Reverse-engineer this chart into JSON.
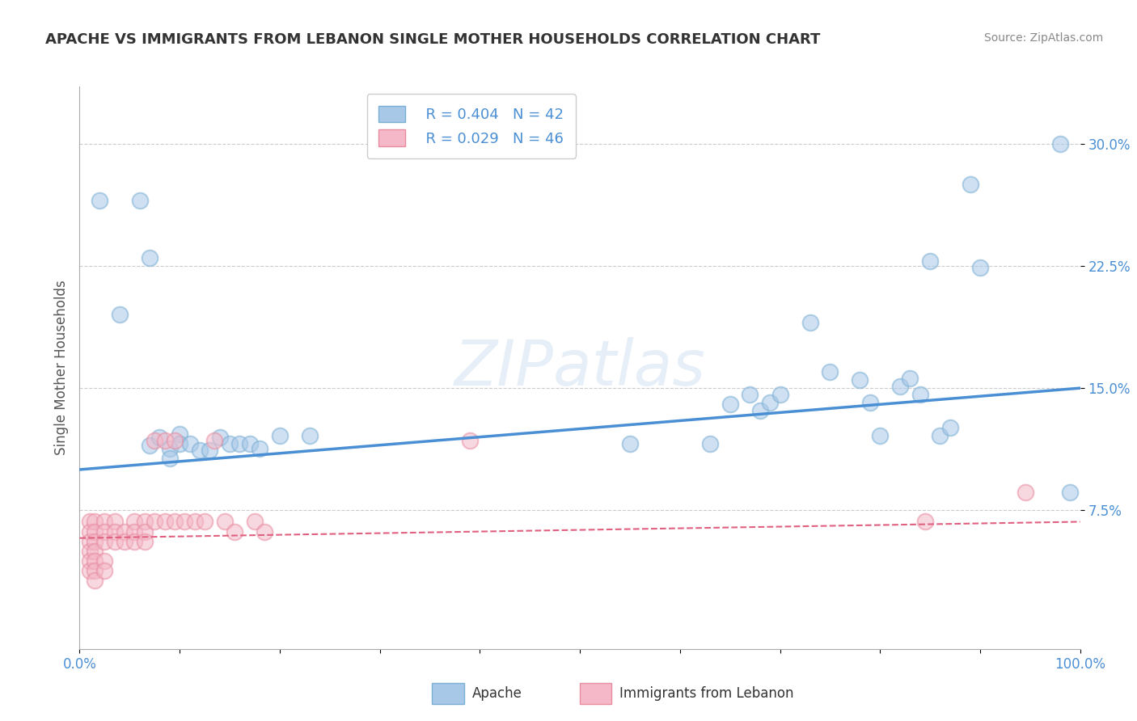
{
  "title": "APACHE VS IMMIGRANTS FROM LEBANON SINGLE MOTHER HOUSEHOLDS CORRELATION CHART",
  "source": "Source: ZipAtlas.com",
  "ylabel": "Single Mother Households",
  "xlim": [
    0,
    1.0
  ],
  "ylim": [
    -0.01,
    0.335
  ],
  "yticks": [
    0.075,
    0.15,
    0.225,
    0.3
  ],
  "ytick_labels": [
    "7.5%",
    "15.0%",
    "22.5%",
    "30.0%"
  ],
  "xticks": [
    0.0,
    0.1,
    0.2,
    0.3,
    0.4,
    0.5,
    0.6,
    0.7,
    0.8,
    0.9,
    1.0
  ],
  "xtick_labels": [
    "0.0%",
    "",
    "",
    "",
    "",
    "",
    "",
    "",
    "",
    "",
    "100.0%"
  ],
  "legend_R_apache": "R = 0.404",
  "legend_N_apache": "N = 42",
  "legend_R_lebanon": "R = 0.029",
  "legend_N_lebanon": "N = 46",
  "apache_color": "#a8c8e8",
  "apache_edge_color": "#7bafd4",
  "lebanon_color": "#f4b8c8",
  "lebanon_edge_color": "#e88ca0",
  "apache_line_color": "#4a8fd4",
  "lebanon_line_color": "#e06080",
  "background_color": "#ffffff",
  "apache_points": [
    [
      0.02,
      0.265
    ],
    [
      0.04,
      0.195
    ],
    [
      0.06,
      0.265
    ],
    [
      0.07,
      0.23
    ],
    [
      0.07,
      0.115
    ],
    [
      0.08,
      0.12
    ],
    [
      0.09,
      0.113
    ],
    [
      0.09,
      0.107
    ],
    [
      0.1,
      0.122
    ],
    [
      0.1,
      0.116
    ],
    [
      0.11,
      0.116
    ],
    [
      0.12,
      0.112
    ],
    [
      0.13,
      0.112
    ],
    [
      0.14,
      0.12
    ],
    [
      0.15,
      0.116
    ],
    [
      0.16,
      0.116
    ],
    [
      0.17,
      0.116
    ],
    [
      0.18,
      0.113
    ],
    [
      0.2,
      0.121
    ],
    [
      0.23,
      0.121
    ],
    [
      0.55,
      0.116
    ],
    [
      0.63,
      0.116
    ],
    [
      0.65,
      0.14
    ],
    [
      0.67,
      0.146
    ],
    [
      0.68,
      0.136
    ],
    [
      0.69,
      0.141
    ],
    [
      0.7,
      0.146
    ],
    [
      0.73,
      0.19
    ],
    [
      0.75,
      0.16
    ],
    [
      0.78,
      0.155
    ],
    [
      0.79,
      0.141
    ],
    [
      0.8,
      0.121
    ],
    [
      0.82,
      0.151
    ],
    [
      0.83,
      0.156
    ],
    [
      0.84,
      0.146
    ],
    [
      0.85,
      0.228
    ],
    [
      0.86,
      0.121
    ],
    [
      0.87,
      0.126
    ],
    [
      0.89,
      0.275
    ],
    [
      0.9,
      0.224
    ],
    [
      0.98,
      0.3
    ],
    [
      0.99,
      0.086
    ]
  ],
  "lebanon_points": [
    [
      0.01,
      0.068
    ],
    [
      0.01,
      0.062
    ],
    [
      0.01,
      0.056
    ],
    [
      0.01,
      0.05
    ],
    [
      0.01,
      0.044
    ],
    [
      0.01,
      0.038
    ],
    [
      0.015,
      0.068
    ],
    [
      0.015,
      0.062
    ],
    [
      0.015,
      0.056
    ],
    [
      0.015,
      0.05
    ],
    [
      0.015,
      0.044
    ],
    [
      0.015,
      0.038
    ],
    [
      0.015,
      0.032
    ],
    [
      0.025,
      0.068
    ],
    [
      0.025,
      0.062
    ],
    [
      0.025,
      0.056
    ],
    [
      0.025,
      0.044
    ],
    [
      0.025,
      0.038
    ],
    [
      0.035,
      0.068
    ],
    [
      0.035,
      0.062
    ],
    [
      0.035,
      0.056
    ],
    [
      0.045,
      0.062
    ],
    [
      0.045,
      0.056
    ],
    [
      0.055,
      0.068
    ],
    [
      0.055,
      0.062
    ],
    [
      0.055,
      0.056
    ],
    [
      0.065,
      0.068
    ],
    [
      0.065,
      0.062
    ],
    [
      0.065,
      0.056
    ],
    [
      0.075,
      0.118
    ],
    [
      0.075,
      0.068
    ],
    [
      0.085,
      0.118
    ],
    [
      0.085,
      0.068
    ],
    [
      0.095,
      0.118
    ],
    [
      0.095,
      0.068
    ],
    [
      0.105,
      0.068
    ],
    [
      0.115,
      0.068
    ],
    [
      0.125,
      0.068
    ],
    [
      0.135,
      0.118
    ],
    [
      0.145,
      0.068
    ],
    [
      0.155,
      0.062
    ],
    [
      0.175,
      0.068
    ],
    [
      0.185,
      0.062
    ],
    [
      0.39,
      0.118
    ],
    [
      0.845,
      0.068
    ],
    [
      0.945,
      0.086
    ]
  ],
  "apache_trendline_x": [
    0.0,
    1.0
  ],
  "apache_trendline_y": [
    0.1,
    0.15
  ],
  "lebanon_trendline_x": [
    0.0,
    1.0
  ],
  "lebanon_trendline_y": [
    0.058,
    0.068
  ]
}
